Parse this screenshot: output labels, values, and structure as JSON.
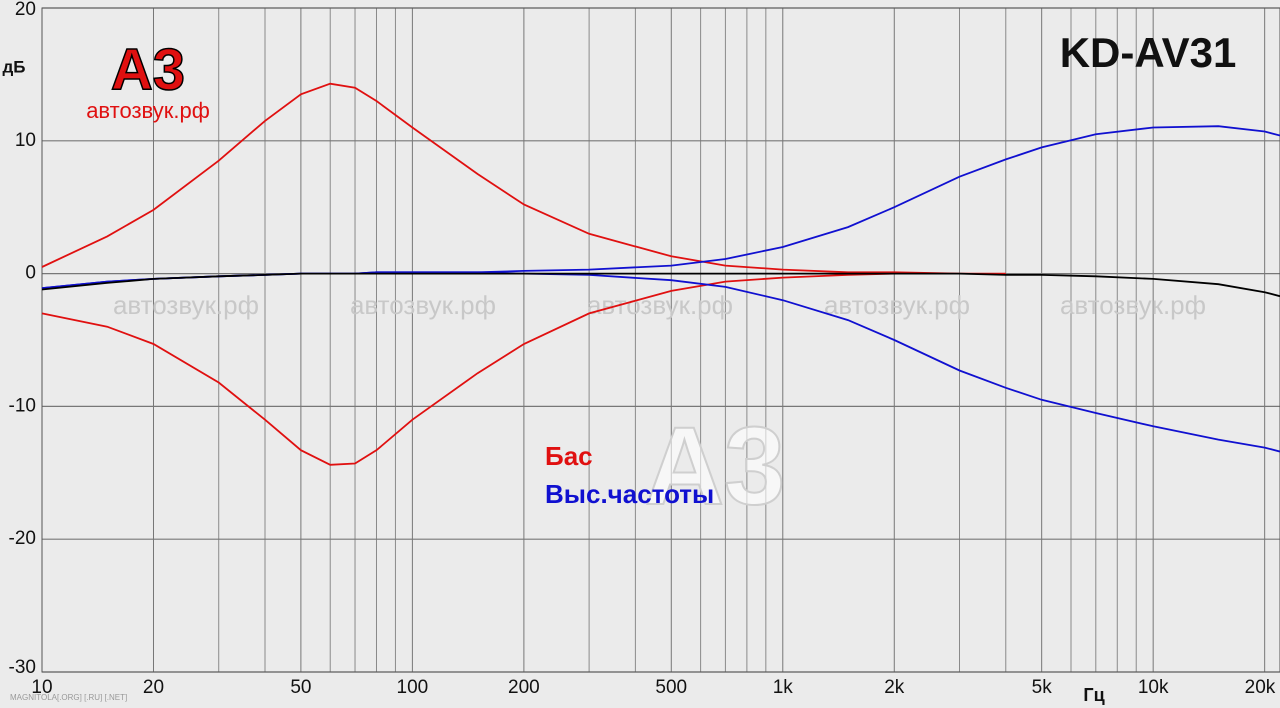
{
  "chart_data": {
    "type": "line",
    "title": "KD-AV31",
    "y_label": "дБ",
    "x_label": "Гц",
    "logo": "А3",
    "logo_subtitle": "автозвук.рф",
    "watermark": "автозвук.рф",
    "footer": "MAGNITOLA[.ORG] [.RU] [.NET]",
    "x": [
      10,
      15,
      20,
      30,
      40,
      50,
      60,
      70,
      80,
      100,
      150,
      200,
      300,
      500,
      700,
      1000,
      1500,
      2000,
      3000,
      4000,
      5000,
      7000,
      10000,
      15000,
      20000,
      22000
    ],
    "series": [
      {
        "name": "Бас",
        "color": "#e01010",
        "values": [
          0.5,
          2.8,
          4.8,
          8.5,
          11.5,
          13.5,
          14.3,
          14.0,
          13.0,
          11.0,
          7.5,
          5.2,
          3.0,
          1.3,
          0.6,
          0.3,
          0.1,
          0.1,
          0.0,
          0.0,
          null,
          null,
          null,
          null,
          null,
          null
        ]
      },
      {
        "color": "#e01010",
        "values": [
          -3.0,
          -4.0,
          -5.3,
          -8.2,
          -11.0,
          -13.3,
          -14.4,
          -14.3,
          -13.3,
          -11.0,
          -7.5,
          -5.3,
          -3.0,
          -1.3,
          -0.6,
          -0.3,
          -0.1,
          0.0,
          null,
          null,
          null,
          null,
          null,
          null,
          null,
          null
        ]
      },
      {
        "name": "Выс.частоты",
        "color": "#1010d0",
        "values": [
          -1.1,
          -0.6,
          -0.4,
          -0.2,
          -0.1,
          0.0,
          0.0,
          0.0,
          0.1,
          0.1,
          0.1,
          0.2,
          0.3,
          0.6,
          1.1,
          2.0,
          3.5,
          5.0,
          7.3,
          8.6,
          9.5,
          10.5,
          11.0,
          11.1,
          10.7,
          10.4
        ]
      },
      {
        "color": "#1010d0",
        "values": [
          -1.1,
          -0.6,
          -0.4,
          -0.2,
          -0.1,
          0.0,
          0.0,
          0.0,
          0.1,
          0.1,
          0.1,
          0.0,
          -0.1,
          -0.5,
          -1.0,
          -2.0,
          -3.5,
          -5.0,
          -7.3,
          -8.6,
          -9.5,
          -10.5,
          -11.5,
          -12.5,
          -13.1,
          -13.4
        ]
      },
      {
        "color": "#000000",
        "values": [
          -1.2,
          -0.7,
          -0.4,
          -0.2,
          -0.1,
          0.0,
          0.0,
          0.0,
          0.0,
          0.0,
          0.0,
          0.0,
          0.0,
          0.0,
          0.0,
          0.0,
          0.0,
          0.0,
          0.0,
          -0.1,
          -0.1,
          -0.2,
          -0.4,
          -0.8,
          -1.4,
          -1.7
        ]
      }
    ],
    "xlim": [
      10,
      22000
    ],
    "ylim": [
      -30,
      20
    ],
    "log_x": true,
    "xticks": [
      10,
      20,
      50,
      100,
      200,
      500,
      {
        "value": 1000,
        "label": "1k"
      },
      {
        "value": 2000,
        "label": "2k"
      },
      {
        "value": 5000,
        "label": "5k"
      },
      {
        "value": 10000,
        "label": "10k"
      },
      {
        "value": 20000,
        "label": "20k"
      }
    ],
    "xminor": [
      30,
      40,
      60,
      70,
      80,
      90,
      300,
      400,
      600,
      700,
      800,
      900,
      3000,
      4000,
      6000,
      7000,
      8000,
      9000
    ],
    "yticks": [
      -30,
      -20,
      -10,
      0,
      10,
      20
    ],
    "grid": true
  }
}
